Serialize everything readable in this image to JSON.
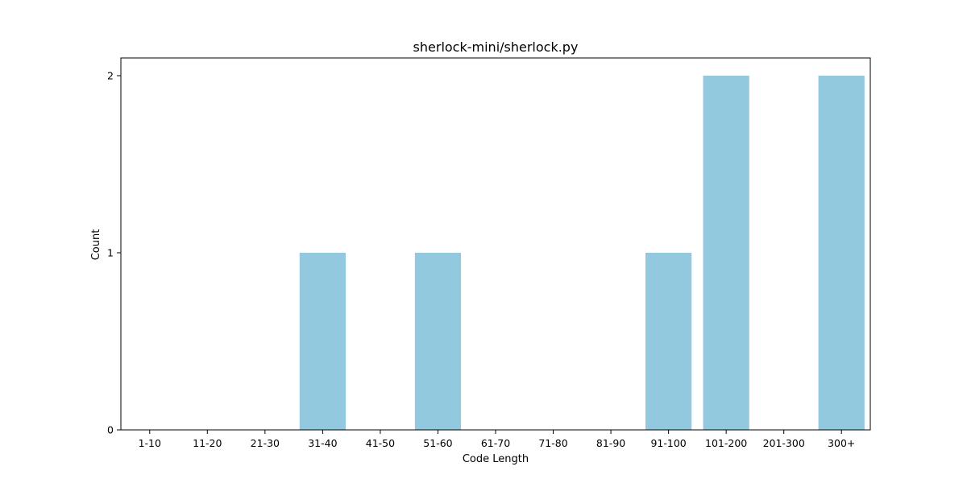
{
  "chart_data": {
    "type": "bar",
    "title": "sherlock-mini/sherlock.py",
    "xlabel": "Code Length",
    "ylabel": "Count",
    "categories": [
      "1-10",
      "11-20",
      "21-30",
      "31-40",
      "41-50",
      "51-60",
      "61-70",
      "71-80",
      "81-90",
      "91-100",
      "101-200",
      "201-300",
      "300+"
    ],
    "values": [
      0,
      0,
      0,
      1,
      0,
      1,
      0,
      0,
      0,
      1,
      2,
      0,
      2
    ],
    "ylim": [
      0,
      2.1
    ],
    "yticks": [
      0,
      1,
      2
    ],
    "grid": false,
    "bar_color": "#92c9de"
  }
}
